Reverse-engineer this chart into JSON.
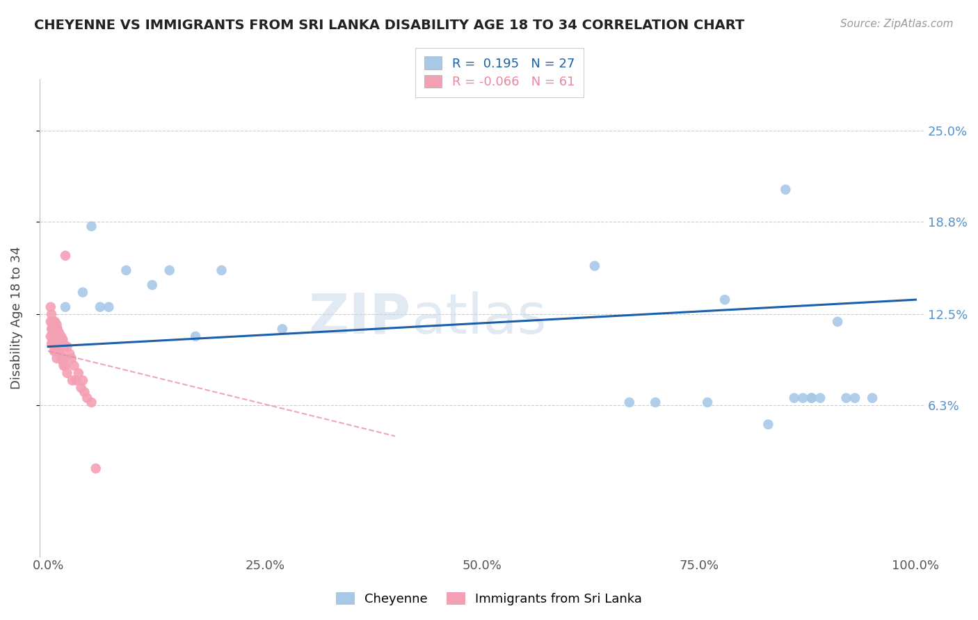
{
  "title": "CHEYENNE VS IMMIGRANTS FROM SRI LANKA DISABILITY AGE 18 TO 34 CORRELATION CHART",
  "source": "Source: ZipAtlas.com",
  "ylabel": "Disability Age 18 to 34",
  "ytick_labels": [
    "6.3%",
    "12.5%",
    "18.8%",
    "25.0%"
  ],
  "ytick_values": [
    0.063,
    0.125,
    0.188,
    0.25
  ],
  "xlim": [
    -0.01,
    1.01
  ],
  "ylim": [
    -0.04,
    0.285
  ],
  "blue_R": 0.195,
  "blue_N": 27,
  "pink_R": -0.066,
  "pink_N": 61,
  "blue_color": "#a8c8e8",
  "pink_color": "#f4a0b4",
  "trend_blue_color": "#1a5fa8",
  "trend_pink_color": "#e888a0",
  "watermark_zip": "ZIP",
  "watermark_atlas": "atlas",
  "legend_label_blue": "Cheyenne",
  "legend_label_pink": "Immigrants from Sri Lanka",
  "blue_trend_start": 0.103,
  "blue_trend_end": 0.135,
  "pink_trend_start_x": 0.0,
  "pink_trend_start_y": 0.1,
  "pink_trend_end_x": 0.4,
  "pink_trend_end_y": 0.042,
  "blue_points_x": [
    0.02,
    0.04,
    0.05,
    0.06,
    0.07,
    0.09,
    0.12,
    0.14,
    0.17,
    0.2,
    0.27,
    0.63,
    0.67,
    0.7,
    0.76,
    0.78,
    0.83,
    0.85,
    0.86,
    0.87,
    0.88,
    0.88,
    0.89,
    0.91,
    0.92,
    0.93,
    0.95
  ],
  "blue_points_y": [
    0.13,
    0.14,
    0.185,
    0.13,
    0.13,
    0.155,
    0.145,
    0.155,
    0.11,
    0.155,
    0.115,
    0.158,
    0.065,
    0.065,
    0.065,
    0.135,
    0.05,
    0.21,
    0.068,
    0.068,
    0.068,
    0.068,
    0.068,
    0.12,
    0.068,
    0.068,
    0.068
  ],
  "pink_points_x": [
    0.003,
    0.003,
    0.003,
    0.004,
    0.004,
    0.004,
    0.005,
    0.005,
    0.005,
    0.005,
    0.006,
    0.006,
    0.006,
    0.007,
    0.007,
    0.007,
    0.007,
    0.008,
    0.008,
    0.008,
    0.008,
    0.009,
    0.009,
    0.009,
    0.01,
    0.01,
    0.01,
    0.01,
    0.011,
    0.011,
    0.012,
    0.012,
    0.013,
    0.013,
    0.014,
    0.014,
    0.015,
    0.015,
    0.016,
    0.016,
    0.017,
    0.017,
    0.018,
    0.018,
    0.019,
    0.02,
    0.02,
    0.022,
    0.022,
    0.025,
    0.027,
    0.028,
    0.03,
    0.032,
    0.035,
    0.038,
    0.04,
    0.042,
    0.045,
    0.05,
    0.055
  ],
  "pink_points_y": [
    0.13,
    0.12,
    0.11,
    0.125,
    0.115,
    0.105,
    0.12,
    0.115,
    0.11,
    0.105,
    0.12,
    0.115,
    0.108,
    0.118,
    0.113,
    0.108,
    0.1,
    0.12,
    0.113,
    0.108,
    0.1,
    0.115,
    0.11,
    0.103,
    0.118,
    0.112,
    0.105,
    0.095,
    0.115,
    0.108,
    0.113,
    0.105,
    0.112,
    0.1,
    0.11,
    0.098,
    0.11,
    0.095,
    0.108,
    0.095,
    0.108,
    0.093,
    0.105,
    0.09,
    0.103,
    0.165,
    0.09,
    0.103,
    0.085,
    0.098,
    0.095,
    0.08,
    0.09,
    0.08,
    0.085,
    0.075,
    0.08,
    0.072,
    0.068,
    0.065,
    0.02
  ]
}
